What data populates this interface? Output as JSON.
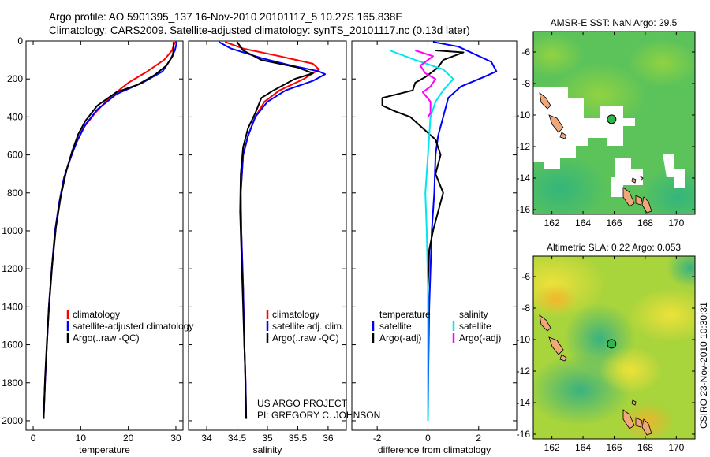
{
  "header": {
    "line1": "Argo profile: AO 5901395_137 16-Nov-2010 20101117_5 10.27S 165.838E",
    "line2": "Climatology: CARS2009. Satellite-adjusted climatology: synTS_20101117.nc (0.13d later)"
  },
  "credit": {
    "line1": "US ARGO PROJECT",
    "line2": "PI: GREGORY C. JOHNSON"
  },
  "timestamp": "CSIRO 23-Nov-2010 10:30:31",
  "colors": {
    "climatology": "#ff0000",
    "satellite": "#0000ff",
    "argo": "#000000",
    "sal_satellite": "#00e5ee",
    "sal_argo": "#ff00ff"
  },
  "chart_data": [
    {
      "type": "line",
      "xlabel": "temperature",
      "ylabel": "",
      "xlim": [
        -1.5,
        31.5
      ],
      "ylim": [
        2050,
        0
      ],
      "xticks": [
        "0",
        "10",
        "20",
        "30"
      ],
      "yticks": [
        "0",
        "200",
        "400",
        "600",
        "800",
        "1000",
        "1200",
        "1400",
        "1600",
        "1800",
        "2000"
      ],
      "legend": [
        {
          "label": "climatology",
          "color": "#ff0000"
        },
        {
          "label": "satellite-adjusted climatology",
          "color": "#0000ff"
        },
        {
          "label": "Argo(..raw -QC)",
          "color": "#000000"
        }
      ],
      "series": [
        {
          "name": "climatology",
          "color": "#ff0000",
          "points": [
            [
              29.8,
              5
            ],
            [
              29.2,
              50
            ],
            [
              27.5,
              100
            ],
            [
              24,
              160
            ],
            [
              20,
              220
            ],
            [
              16,
              300
            ],
            [
              13,
              380
            ],
            [
              10.5,
              460
            ],
            [
              9,
              540
            ],
            [
              7.8,
              620
            ],
            [
              6.5,
              720
            ],
            [
              5.5,
              850
            ],
            [
              4.6,
              1000
            ],
            [
              3.9,
              1200
            ],
            [
              3.3,
              1400
            ],
            [
              2.9,
              1600
            ],
            [
              2.5,
              1800
            ],
            [
              2.2,
              1990
            ]
          ]
        },
        {
          "name": "satellite-adjusted climatology",
          "color": "#0000ff",
          "points": [
            [
              30.2,
              5
            ],
            [
              29.8,
              50
            ],
            [
              28.8,
              100
            ],
            [
              27.2,
              160
            ],
            [
              23,
              220
            ],
            [
              17.5,
              280
            ],
            [
              13.5,
              360
            ],
            [
              11,
              440
            ],
            [
              9.2,
              530
            ],
            [
              7.8,
              620
            ],
            [
              6.5,
              720
            ],
            [
              5.5,
              850
            ],
            [
              4.6,
              1000
            ],
            [
              3.9,
              1200
            ],
            [
              3.3,
              1400
            ],
            [
              2.9,
              1600
            ],
            [
              2.5,
              1800
            ],
            [
              2.2,
              1990
            ]
          ]
        },
        {
          "name": "Argo(..raw -QC)",
          "color": "#000000",
          "points": [
            [
              29.5,
              5
            ],
            [
              29.5,
              50
            ],
            [
              29.3,
              80
            ],
            [
              28,
              130
            ],
            [
              25.5,
              180
            ],
            [
              22,
              230
            ],
            [
              17.5,
              270
            ],
            [
              13.5,
              340
            ],
            [
              11,
              420
            ],
            [
              9.5,
              490
            ],
            [
              8.2,
              580
            ],
            [
              7,
              680
            ],
            [
              5.8,
              820
            ],
            [
              4.8,
              980
            ],
            [
              4,
              1180
            ],
            [
              3.4,
              1380
            ],
            [
              2.9,
              1580
            ],
            [
              2.5,
              1780
            ],
            [
              2.2,
              1990
            ]
          ]
        }
      ]
    },
    {
      "type": "line",
      "xlabel": "salinity",
      "xlim": [
        33.7,
        36.3
      ],
      "ylim": [
        2050,
        0
      ],
      "xticks": [
        "34",
        "34.5",
        "35",
        "35.5",
        "36"
      ],
      "legend": [
        {
          "label": "climatology",
          "color": "#ff0000"
        },
        {
          "label": "satellite adj. clim.",
          "color": "#0000ff"
        },
        {
          "label": "Argo(..raw -QC)",
          "color": "#000000"
        }
      ],
      "series": [
        {
          "name": "climatology",
          "color": "#ff0000",
          "points": [
            [
              34.3,
              5
            ],
            [
              34.6,
              40
            ],
            [
              35.2,
              80
            ],
            [
              35.75,
              120
            ],
            [
              35.85,
              150
            ],
            [
              35.6,
              200
            ],
            [
              35.2,
              260
            ],
            [
              34.95,
              320
            ],
            [
              34.8,
              400
            ],
            [
              34.68,
              500
            ],
            [
              34.6,
              600
            ],
            [
              34.56,
              800
            ],
            [
              34.57,
              1000
            ],
            [
              34.6,
              1300
            ],
            [
              34.62,
              1600
            ],
            [
              34.64,
              1800
            ],
            [
              34.65,
              1990
            ]
          ]
        },
        {
          "name": "satellite adj. clim.",
          "color": "#0000ff",
          "points": [
            [
              34.2,
              5
            ],
            [
              34.4,
              40
            ],
            [
              34.9,
              90
            ],
            [
              35.4,
              130
            ],
            [
              35.85,
              160
            ],
            [
              35.95,
              175
            ],
            [
              35.75,
              210
            ],
            [
              35.3,
              260
            ],
            [
              35,
              320
            ],
            [
              34.8,
              400
            ],
            [
              34.68,
              500
            ],
            [
              34.6,
              600
            ],
            [
              34.56,
              800
            ],
            [
              34.57,
              1000
            ],
            [
              34.6,
              1300
            ],
            [
              34.62,
              1600
            ],
            [
              34.64,
              1800
            ],
            [
              34.65,
              1990
            ]
          ]
        },
        {
          "name": "Argo(..raw -QC)",
          "color": "#000000",
          "points": [
            [
              34.5,
              5
            ],
            [
              34.6,
              50
            ],
            [
              34.9,
              100
            ],
            [
              35.5,
              140
            ],
            [
              35.75,
              170
            ],
            [
              35.45,
              200
            ],
            [
              35.1,
              260
            ],
            [
              34.9,
              300
            ],
            [
              34.8,
              380
            ],
            [
              34.68,
              460
            ],
            [
              34.6,
              560
            ],
            [
              34.56,
              700
            ],
            [
              34.55,
              900
            ],
            [
              34.57,
              1100
            ],
            [
              34.6,
              1400
            ],
            [
              34.63,
              1700
            ],
            [
              34.64,
              1850
            ],
            [
              34.65,
              1990
            ]
          ]
        }
      ]
    },
    {
      "type": "line",
      "xlabel": "difference from climatology",
      "xlim": [
        -3,
        3.5
      ],
      "ylim": [
        2050,
        0
      ],
      "xticks": [
        "-2",
        "0",
        "2"
      ],
      "legend": [
        {
          "label": "temperature",
          "color": null
        },
        {
          "label": "satellite",
          "color": "#0000ff"
        },
        {
          "label": "Argo(-adj)",
          "color": "#000000"
        },
        {
          "label": "salinity",
          "color": null
        },
        {
          "label": "satellite",
          "color": "#00e5ee"
        },
        {
          "label": "Argo(-adj)",
          "color": "#ff00ff"
        }
      ],
      "series": [
        {
          "name": "temperature satellite",
          "color": "#0000ff",
          "points": [
            [
              0.2,
              5
            ],
            [
              1.2,
              30
            ],
            [
              2.5,
              110
            ],
            [
              2.7,
              160
            ],
            [
              2.2,
              190
            ],
            [
              1.3,
              240
            ],
            [
              0.8,
              300
            ],
            [
              0.6,
              400
            ],
            [
              0.4,
              500
            ],
            [
              0.3,
              600
            ],
            [
              0.25,
              800
            ],
            [
              0.15,
              1000
            ],
            [
              0.1,
              1200
            ],
            [
              0.05,
              1400
            ],
            [
              0.02,
              1700
            ],
            [
              0,
              2000
            ]
          ]
        },
        {
          "name": "temperature Argo(-adj)",
          "color": "#000000",
          "points": [
            [
              0.3,
              50
            ],
            [
              1.4,
              60
            ],
            [
              0.6,
              100
            ],
            [
              0.4,
              140
            ],
            [
              -0.1,
              190
            ],
            [
              -0.5,
              220
            ],
            [
              -0.6,
              260
            ],
            [
              -1.8,
              300
            ],
            [
              -1.8,
              340
            ],
            [
              -1.3,
              370
            ],
            [
              -0.7,
              400
            ],
            [
              -0.2,
              460
            ],
            [
              0.3,
              520
            ],
            [
              0.5,
              600
            ],
            [
              0.3,
              700
            ],
            [
              0.6,
              800
            ],
            [
              0.4,
              900
            ],
            [
              0.2,
              1000
            ],
            [
              0.05,
              1100
            ],
            [
              0,
              1300
            ],
            [
              0,
              2000
            ]
          ]
        },
        {
          "name": "salinity satellite",
          "color": "#00e5ee",
          "points": [
            [
              -1.5,
              50
            ],
            [
              -0.5,
              100
            ],
            [
              0.6,
              150
            ],
            [
              1.0,
              200
            ],
            [
              0.6,
              260
            ],
            [
              0.3,
              320
            ],
            [
              0.1,
              400
            ],
            [
              0,
              600
            ],
            [
              -0.1,
              800
            ],
            [
              -0.05,
              1000
            ],
            [
              0,
              1300
            ],
            [
              0,
              1600
            ],
            [
              0,
              2000
            ]
          ]
        },
        {
          "name": "salinity Argo(-adj)",
          "color": "#ff00ff",
          "points": [
            [
              -0.5,
              50
            ],
            [
              0.2,
              80
            ],
            [
              -0.3,
              130
            ],
            [
              -0.1,
              170
            ],
            [
              0.3,
              200
            ],
            [
              0.1,
              240
            ],
            [
              -0.2,
              270
            ],
            [
              0.1,
              320
            ],
            [
              0.1,
              380
            ],
            [
              0,
              400
            ]
          ]
        }
      ]
    },
    {
      "type": "heatmap",
      "title": "AMSR-E SST: NaN Argo: 29.5",
      "xlim": [
        160.8,
        171.2
      ],
      "ylim": [
        -16.3,
        -4.7
      ],
      "xticks": [
        "162",
        "164",
        "166",
        "168",
        "170"
      ],
      "yticks": [
        "-6",
        "-8",
        "-10",
        "-12",
        "-14",
        "-16"
      ],
      "marker": {
        "lon": 165.838,
        "lat": -10.27
      }
    },
    {
      "type": "heatmap",
      "title": "Altimetric SLA: 0.22 Argo: 0.053",
      "xlim": [
        160.8,
        171.2
      ],
      "ylim": [
        -16.3,
        -4.7
      ],
      "xticks": [
        "162",
        "164",
        "166",
        "168",
        "170"
      ],
      "yticks": [
        "-6",
        "-8",
        "-10",
        "-12",
        "-14",
        "-16"
      ],
      "marker": {
        "lon": 165.838,
        "lat": -10.27
      }
    }
  ]
}
